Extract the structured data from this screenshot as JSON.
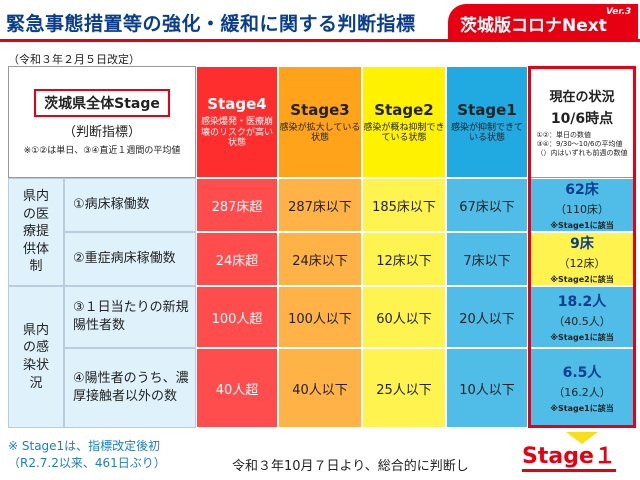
{
  "header": {
    "title": "緊急事態措置等の強化・緩和に関する判断指標",
    "brand": "茨城版コロナNext",
    "version": "Ver.3"
  },
  "revision_note": "（令和３年２月５日改定）",
  "table": {
    "left_header": {
      "title": "茨城県全体Stage",
      "sub": "（判断指標）",
      "note": "※①②は単日、③④直近１週間の平均値"
    },
    "stages": [
      {
        "name": "Stage4",
        "desc": "感染爆発・医療崩壊のリスクが高い状態"
      },
      {
        "name": "Stage3",
        "desc": "感染が拡大している状態"
      },
      {
        "name": "Stage2",
        "desc": "感染が概ね抑制できている状態"
      },
      {
        "name": "Stage1",
        "desc": "感染が抑制できている状態"
      }
    ],
    "current_header": {
      "title": "現在の状況",
      "time": "10/6時点",
      "note1": "①②：単日の数値",
      "note2": "③④：9/30～10/6の平均値",
      "note3": "（）内はいずれも前週の数値"
    },
    "categories": [
      {
        "label": "県内の医療提供体制"
      },
      {
        "label": "県内の感染状況"
      }
    ],
    "rows": [
      {
        "item": "①病床稼働数",
        "values": [
          "287床超",
          "287床以下",
          "185床以下",
          "67床以下"
        ],
        "current": "62床",
        "previous": "（110床）",
        "stage_note": "※Stage1に該当"
      },
      {
        "item": "②重症病床稼働数",
        "values": [
          "24床超",
          "24床以下",
          "12床以下",
          "7床以下"
        ],
        "current": "9床",
        "previous": "（12床）",
        "stage_note": "※Stage2に該当"
      },
      {
        "item": "③１日当たりの新規陽性者数",
        "values": [
          "100人超",
          "100人以下",
          "60人以下",
          "20人以下"
        ],
        "current": "18.2人",
        "previous": "（40.5人）",
        "stage_note": "※Stage1に該当"
      },
      {
        "item": "④陽性者のうち、濃厚接触者以外の数",
        "values": [
          "40人超",
          "40人以下",
          "25人以下",
          "10人以下"
        ],
        "current": "6.5人",
        "previous": "（16.2人）",
        "stage_note": "※Stage1に該当"
      }
    ]
  },
  "footer": {
    "note_line1": "※ Stage1は、指標改定後初",
    "note_line2": "（R2.7.2以来、461日ぶり）",
    "judgment_text": "令和３年10月７日より、総合的に判断し",
    "judgment_stage": "Stage１"
  },
  "colors": {
    "accent_red": "#e60012",
    "title_blue": "#0a3e8c",
    "stage4": "#ff2e2e",
    "stage3": "#ffa31a",
    "stage2": "#fff200",
    "stage1": "#21a9e1"
  }
}
